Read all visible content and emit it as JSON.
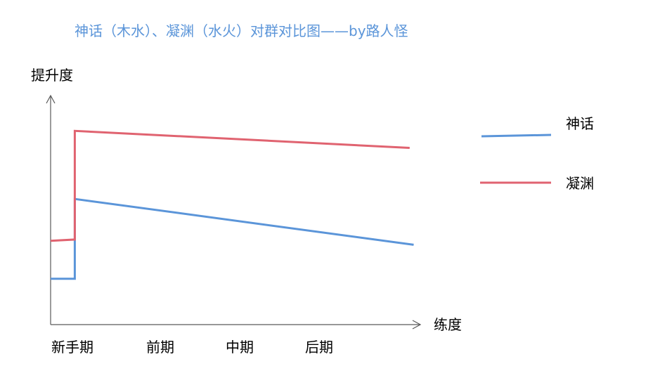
{
  "chart_data": {
    "type": "line",
    "title": "神话（木水）、凝渊（水火）对群对比图——by路人怪",
    "xlabel": "练度",
    "ylabel": "提升度",
    "categories": [
      "新手期",
      "前期",
      "中期",
      "后期"
    ],
    "legend_position": "right",
    "grid": false,
    "series": [
      {
        "name": "神话",
        "color": "#5b95d9",
        "points": [
          {
            "x": 0,
            "y": 0.35
          },
          {
            "x": 0.3,
            "y": 0.35
          },
          {
            "x": 0.3,
            "y": 0.96
          },
          {
            "x": 4.5,
            "y": 0.61
          }
        ]
      },
      {
        "name": "凝渊",
        "color": "#e06370",
        "points": [
          {
            "x": 0,
            "y": 0.64
          },
          {
            "x": 0.3,
            "y": 0.65
          },
          {
            "x": 0.3,
            "y": 1.48
          },
          {
            "x": 4.45,
            "y": 1.35
          }
        ]
      }
    ]
  }
}
